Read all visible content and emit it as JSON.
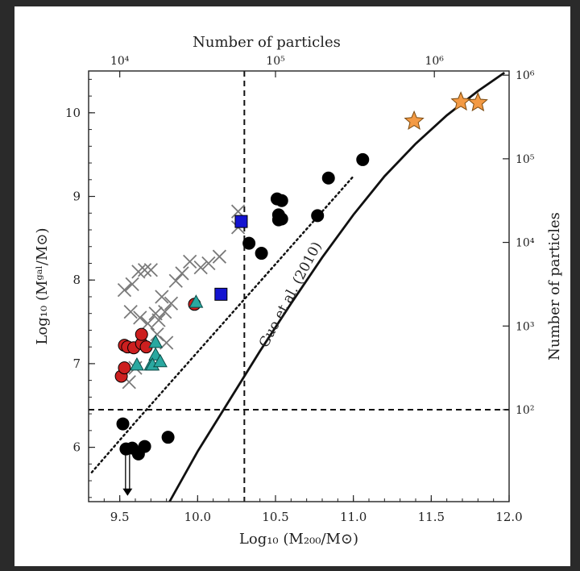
{
  "chart_data": {
    "type": "scatter",
    "title": "",
    "xlabel": "Log₁₀ (M₂₀₀/M⊙)",
    "ylabel": "Log₁₀ (Mᵍᵃˡ/M⊙)",
    "top_xlabel": "Number of particles",
    "right_ylabel": "Number of particles",
    "xlim": [
      9.3,
      12.0
    ],
    "ylim": [
      5.35,
      10.5
    ],
    "x_ticks": [
      "9.5",
      "10.0",
      "10.5",
      "11.0",
      "11.5",
      "12.0"
    ],
    "x_tick_values": [
      9.5,
      10.0,
      10.5,
      11.0,
      11.5,
      12.0
    ],
    "y_ticks": [
      "6",
      "7",
      "8",
      "9",
      "10"
    ],
    "y_tick_values": [
      6,
      7,
      8,
      9,
      10
    ],
    "top_ticks": [
      {
        "label": "10⁴",
        "x": 9.5
      },
      {
        "label": "10⁵",
        "x": 10.5
      },
      {
        "label": "10⁶",
        "x": 11.52
      }
    ],
    "right_ticks": [
      {
        "label": "10²",
        "y": 6.45
      },
      {
        "label": "10³",
        "y": 7.45
      },
      {
        "label": "10⁴",
        "y": 8.45
      },
      {
        "label": "10⁵",
        "y": 9.45
      },
      {
        "label": "10⁶",
        "y": 10.45
      }
    ],
    "dashed_lines": {
      "x": 10.3,
      "y": 6.45
    },
    "annotation": "Guo et al. (2010)",
    "relation": {
      "name": "Guo et al. (2010)",
      "x": [
        9.82,
        10.0,
        10.2,
        10.4,
        10.6,
        10.8,
        11.0,
        11.2,
        11.4,
        11.6,
        11.8,
        11.97
      ],
      "y": [
        5.35,
        5.95,
        6.55,
        7.15,
        7.72,
        8.27,
        8.78,
        9.24,
        9.63,
        9.97,
        10.26,
        10.48
      ]
    },
    "dotted": {
      "x": [
        9.32,
        9.6,
        9.8,
        10.0,
        10.2,
        10.4,
        10.6,
        10.8,
        11.0
      ],
      "y": [
        5.7,
        6.3,
        6.72,
        7.14,
        7.56,
        7.98,
        8.4,
        8.82,
        9.24
      ]
    },
    "series": [
      {
        "marker": "circle",
        "color": "#000000",
        "x": [
          9.52,
          9.54,
          9.58,
          9.62,
          9.66,
          9.81,
          10.33,
          10.41,
          10.51,
          10.54,
          10.52,
          10.54,
          10.52,
          10.77,
          10.84,
          11.06
        ],
        "y": [
          6.28,
          5.98,
          5.99,
          5.92,
          6.01,
          6.12,
          8.44,
          8.32,
          8.97,
          8.95,
          8.78,
          8.73,
          8.72,
          8.77,
          9.22,
          9.44
        ]
      },
      {
        "marker": "x",
        "color": "#7a7a7a",
        "x": [
          9.53,
          9.58,
          9.62,
          9.66,
          9.7,
          9.57,
          9.63,
          9.68,
          9.75,
          9.79,
          9.83,
          9.77,
          9.74,
          9.8,
          9.73,
          9.86,
          9.9,
          9.95,
          10.02,
          10.07,
          10.14,
          10.26,
          10.26,
          9.6,
          9.56
        ],
        "y": [
          7.88,
          7.95,
          8.1,
          8.12,
          8.12,
          7.62,
          7.55,
          7.48,
          7.52,
          7.62,
          7.72,
          7.8,
          7.35,
          7.25,
          7.6,
          7.99,
          8.08,
          8.22,
          8.15,
          8.2,
          8.28,
          8.82,
          8.63,
          6.95,
          6.78
        ]
      },
      {
        "marker": "circle",
        "color": "#cc1f1f",
        "x": [
          9.51,
          9.53,
          9.53,
          9.55,
          9.59,
          9.64,
          9.64,
          9.67,
          9.98
        ],
        "y": [
          6.85,
          6.95,
          7.22,
          7.2,
          7.19,
          7.24,
          7.35,
          7.2,
          7.71
        ]
      },
      {
        "marker": "triangle",
        "color": "#2aa8a0",
        "x": [
          9.61,
          9.7,
          9.73,
          9.73,
          9.71,
          9.76,
          9.99
        ],
        "y": [
          6.98,
          6.98,
          7.25,
          7.1,
          6.98,
          7.02,
          7.73
        ]
      },
      {
        "marker": "square",
        "color": "#1414d0",
        "x": [
          10.15,
          10.28
        ],
        "y": [
          7.83,
          8.7
        ]
      },
      {
        "marker": "star",
        "color": "#f39a44",
        "x": [
          11.39,
          11.69,
          11.8
        ],
        "y": [
          9.9,
          10.13,
          10.12
        ]
      }
    ],
    "arrow": {
      "x": 9.55,
      "y_from": 5.93,
      "y_to": 5.42
    }
  }
}
